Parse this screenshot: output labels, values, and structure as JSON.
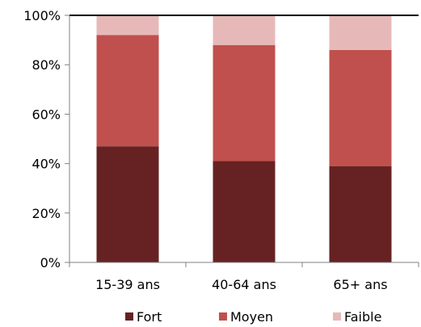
{
  "chart_data": {
    "type": "bar",
    "stacked": true,
    "percent_stacked": true,
    "categories": [
      "15-39 ans",
      "40-64 ans",
      "65+ ans"
    ],
    "series": [
      {
        "name": "Fort",
        "color": "#662222",
        "values": [
          47,
          41,
          39
        ]
      },
      {
        "name": "Moyen",
        "color": "#c0504d",
        "values": [
          45,
          47,
          47
        ]
      },
      {
        "name": "Faible",
        "color": "#e6b9b8",
        "values": [
          8,
          12,
          14
        ]
      }
    ],
    "ylim": [
      0,
      100
    ],
    "y_ticks": [
      0,
      20,
      40,
      60,
      80,
      100
    ],
    "y_tick_labels": [
      "0%",
      "20%",
      "40%",
      "60%",
      "80%",
      "100%"
    ],
    "grid": false,
    "legend_position": "bottom"
  }
}
